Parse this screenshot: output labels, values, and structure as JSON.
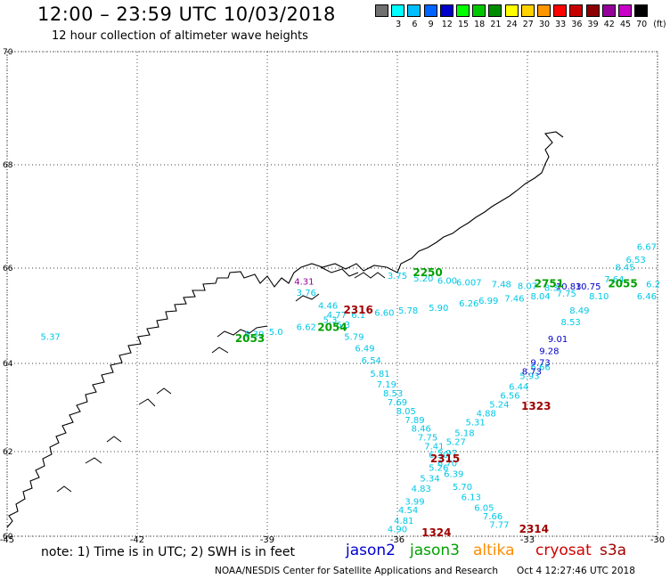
{
  "header": {
    "title": "12:00 – 23:59 UTC 10/03/2018",
    "subtitle": "12 hour collection of altimeter wave heights"
  },
  "legend": {
    "unit": "(ft)",
    "items": [
      {
        "label": "",
        "color": "#707070"
      },
      {
        "label": "3",
        "color": "#00ffff"
      },
      {
        "label": "6",
        "color": "#00bfff"
      },
      {
        "label": "9",
        "color": "#0064ff"
      },
      {
        "label": "12",
        "color": "#0000c8"
      },
      {
        "label": "15",
        "color": "#00ff00"
      },
      {
        "label": "18",
        "color": "#00c800"
      },
      {
        "label": "21",
        "color": "#008c00"
      },
      {
        "label": "24",
        "color": "#ffff00"
      },
      {
        "label": "27",
        "color": "#ffd200"
      },
      {
        "label": "30",
        "color": "#ff9600"
      },
      {
        "label": "33",
        "color": "#ff0000"
      },
      {
        "label": "36",
        "color": "#c80000"
      },
      {
        "label": "39",
        "color": "#8c0000"
      },
      {
        "label": "42",
        "color": "#96009b"
      },
      {
        "label": "45",
        "color": "#c800c8"
      },
      {
        "label": "70",
        "color": "#000000"
      }
    ]
  },
  "axes": {
    "lat_labels": [
      "70",
      "68",
      "66",
      "64",
      "62",
      "60"
    ],
    "lon_labels": [
      "-45",
      "-42",
      "-39",
      "-36",
      "-33",
      "-30"
    ]
  },
  "footer": {
    "note": "note: 1) Time is in UTC; 2) SWH is in feet",
    "satellites": [
      {
        "name": "jason2",
        "color": "#0000d0"
      },
      {
        "name": "jason3",
        "color": "#00a000"
      },
      {
        "name": "altika",
        "color": "#ff8c00"
      },
      {
        "name": "cryosat",
        "color": "#d00000"
      },
      {
        "name": "s3a",
        "color": "#a00000"
      }
    ],
    "credit": "NOAA/NESDIS Center for Satellite Applications and Research",
    "timestamp": "Oct  4 12:27:46 UTC 2018"
  },
  "passes": [
    {
      "label": "2250",
      "color": "#00a000",
      "lon": -35.3,
      "lat": 65.83
    },
    {
      "label": "2316",
      "color": "#a00000",
      "lon": -36.9,
      "lat": 65.05
    },
    {
      "label": "2054",
      "color": "#00a000",
      "lon": -37.5,
      "lat": 64.68
    },
    {
      "label": "2053",
      "color": "#00a000",
      "lon": -39.4,
      "lat": 64.45
    },
    {
      "label": "2751",
      "color": "#00a000",
      "lon": -32.5,
      "lat": 65.6
    },
    {
      "label": "2055",
      "color": "#00a000",
      "lon": -30.8,
      "lat": 65.6
    },
    {
      "label": "1323",
      "color": "#a00000",
      "lon": -32.8,
      "lat": 62.95
    },
    {
      "label": "2315",
      "color": "#a00000",
      "lon": -34.9,
      "lat": 61.75
    },
    {
      "label": "1324",
      "color": "#a00000",
      "lon": -35.1,
      "lat": 59.98
    },
    {
      "label": "2314",
      "color": "#a00000",
      "lon": -32.85,
      "lat": 60.08
    }
  ],
  "wave_tracks": [
    {
      "name": "track-west-to-east",
      "color": "#00c8e6",
      "points": [
        {
          "lon": -44.0,
          "lat": 64.5,
          "v": "5.37"
        },
        {
          "lon": -39.3,
          "lat": 64.55,
          "v": "6.39"
        },
        {
          "lon": -38.8,
          "lat": 64.6,
          "v": "5.0"
        },
        {
          "lon": -38.1,
          "lat": 64.7,
          "v": "6.62"
        },
        {
          "lon": -37.55,
          "lat": 64.85,
          "v": "5.3"
        },
        {
          "lon": -36.9,
          "lat": 64.95,
          "v": "6.1"
        },
        {
          "lon": -36.3,
          "lat": 65.0,
          "v": "6.60"
        },
        {
          "lon": -35.75,
          "lat": 65.05,
          "v": "5.78"
        },
        {
          "lon": -35.05,
          "lat": 65.1,
          "v": "5.90"
        },
        {
          "lon": -34.35,
          "lat": 65.2,
          "v": "6.26"
        },
        {
          "lon": -33.9,
          "lat": 65.25,
          "v": "6.99"
        },
        {
          "lon": -33.3,
          "lat": 65.3,
          "v": "7.46"
        },
        {
          "lon": -32.7,
          "lat": 65.35,
          "v": "8.04"
        },
        {
          "lon": -32.1,
          "lat": 65.4,
          "v": "7.75"
        }
      ]
    },
    {
      "name": "track-upper-shelf",
      "color": "#00c8e6",
      "points": [
        {
          "lon": -36.0,
          "lat": 65.78,
          "v": "3.75"
        },
        {
          "lon": -35.4,
          "lat": 65.72,
          "v": "5.20"
        },
        {
          "lon": -34.85,
          "lat": 65.67,
          "v": "6.00"
        },
        {
          "lon": -34.35,
          "lat": 65.64,
          "v": "6.007"
        },
        {
          "lon": -33.6,
          "lat": 65.6,
          "v": "7.48"
        },
        {
          "lon": -33.0,
          "lat": 65.56,
          "v": "8.07"
        },
        {
          "lon": -32.45,
          "lat": 65.52,
          "v": "8.3"
        }
      ]
    },
    {
      "name": "track-nw-to-se",
      "color": "#00c8e6",
      "points": [
        {
          "lon": -38.1,
          "lat": 65.42,
          "v": "3.76"
        },
        {
          "lon": -37.6,
          "lat": 65.15,
          "v": "4.46"
        },
        {
          "lon": -37.4,
          "lat": 64.95,
          "v": "4.77"
        },
        {
          "lon": -37.25,
          "lat": 64.75,
          "v": "6.3"
        },
        {
          "lon": -37.0,
          "lat": 64.5,
          "v": "5.79"
        },
        {
          "lon": -36.75,
          "lat": 64.25,
          "v": "6.49"
        },
        {
          "lon": -36.6,
          "lat": 64.0,
          "v": "6.54"
        },
        {
          "lon": -36.4,
          "lat": 63.7,
          "v": "5.81"
        },
        {
          "lon": -36.25,
          "lat": 63.45,
          "v": "7.19"
        },
        {
          "lon": -36.1,
          "lat": 63.25,
          "v": "8.53"
        },
        {
          "lon": -36.0,
          "lat": 63.05,
          "v": "7.69"
        },
        {
          "lon": -35.8,
          "lat": 62.85,
          "v": "8.05"
        },
        {
          "lon": -35.6,
          "lat": 62.65,
          "v": "7.89"
        },
        {
          "lon": -35.45,
          "lat": 62.45,
          "v": "8.46"
        },
        {
          "lon": -35.3,
          "lat": 62.25,
          "v": "7.75"
        },
        {
          "lon": -35.15,
          "lat": 62.05,
          "v": "7.41"
        },
        {
          "lon": -35.05,
          "lat": 61.85,
          "v": "6.30"
        },
        {
          "lon": -34.85,
          "lat": 61.65,
          "v": "6.70"
        },
        {
          "lon": -34.7,
          "lat": 61.4,
          "v": "6.39"
        },
        {
          "lon": -34.5,
          "lat": 61.1,
          "v": "5.70"
        },
        {
          "lon": -34.3,
          "lat": 60.85,
          "v": "6.13"
        },
        {
          "lon": -34.0,
          "lat": 60.6,
          "v": "6.05"
        },
        {
          "lon": -33.8,
          "lat": 60.4,
          "v": "7.66"
        },
        {
          "lon": -33.65,
          "lat": 60.2,
          "v": "7.77"
        }
      ]
    },
    {
      "name": "track-ne-to-sw",
      "color": "#00c8e6",
      "points": [
        {
          "lon": -30.25,
          "lat": 66.35,
          "v": "6.67"
        },
        {
          "lon": -30.5,
          "lat": 66.1,
          "v": "6.53"
        },
        {
          "lon": -30.75,
          "lat": 65.95,
          "v": "8.45"
        },
        {
          "lon": -31.0,
          "lat": 65.7,
          "v": "7.64"
        },
        {
          "lon": -31.35,
          "lat": 65.35,
          "v": "8.10"
        },
        {
          "lon": -31.8,
          "lat": 65.05,
          "v": "8.49"
        },
        {
          "lon": -32.0,
          "lat": 64.8,
          "v": "8.53"
        },
        {
          "lon": -32.7,
          "lat": 63.85,
          "v": "6.66"
        },
        {
          "lon": -32.95,
          "lat": 63.65,
          "v": "5.93"
        },
        {
          "lon": -33.2,
          "lat": 63.4,
          "v": "6.44"
        },
        {
          "lon": -33.4,
          "lat": 63.2,
          "v": "6.56"
        },
        {
          "lon": -33.65,
          "lat": 63.0,
          "v": "5.24"
        },
        {
          "lon": -33.95,
          "lat": 62.8,
          "v": "4.88"
        },
        {
          "lon": -34.2,
          "lat": 62.6,
          "v": "5.31"
        },
        {
          "lon": -34.45,
          "lat": 62.35,
          "v": "5.18"
        },
        {
          "lon": -34.65,
          "lat": 62.15,
          "v": "5.27"
        },
        {
          "lon": -34.85,
          "lat": 61.9,
          "v": "5.97"
        },
        {
          "lon": -35.05,
          "lat": 61.55,
          "v": "5.26"
        },
        {
          "lon": -35.25,
          "lat": 61.3,
          "v": "5.34"
        },
        {
          "lon": -35.45,
          "lat": 61.05,
          "v": "4.83"
        },
        {
          "lon": -35.6,
          "lat": 60.75,
          "v": "3.99"
        },
        {
          "lon": -35.75,
          "lat": 60.55,
          "v": "4.54"
        },
        {
          "lon": -35.85,
          "lat": 60.3,
          "v": "4.81"
        },
        {
          "lon": -36.0,
          "lat": 60.1,
          "v": "4.90"
        }
      ]
    },
    {
      "name": "track-jason2",
      "color": "#0000c8",
      "points": [
        {
          "lon": -32.05,
          "lat": 65.55,
          "v": "10.83"
        },
        {
          "lon": -31.6,
          "lat": 65.55,
          "v": "10.75"
        },
        {
          "lon": -32.3,
          "lat": 64.45,
          "v": "9.01"
        },
        {
          "lon": -32.5,
          "lat": 64.2,
          "v": "9.28"
        },
        {
          "lon": -32.7,
          "lat": 63.95,
          "v": "9.73"
        },
        {
          "lon": -32.9,
          "lat": 63.75,
          "v": "8.73"
        }
      ]
    },
    {
      "name": "track-east-edge",
      "color": "#00c8e6",
      "points": [
        {
          "lon": -30.25,
          "lat": 65.35,
          "v": "6.46"
        },
        {
          "lon": -30.1,
          "lat": 65.6,
          "v": "6.2"
        }
      ]
    },
    {
      "name": "track-purple",
      "color": "#96009b",
      "points": [
        {
          "lon": -38.15,
          "lat": 65.65,
          "v": "4.31"
        }
      ]
    }
  ]
}
